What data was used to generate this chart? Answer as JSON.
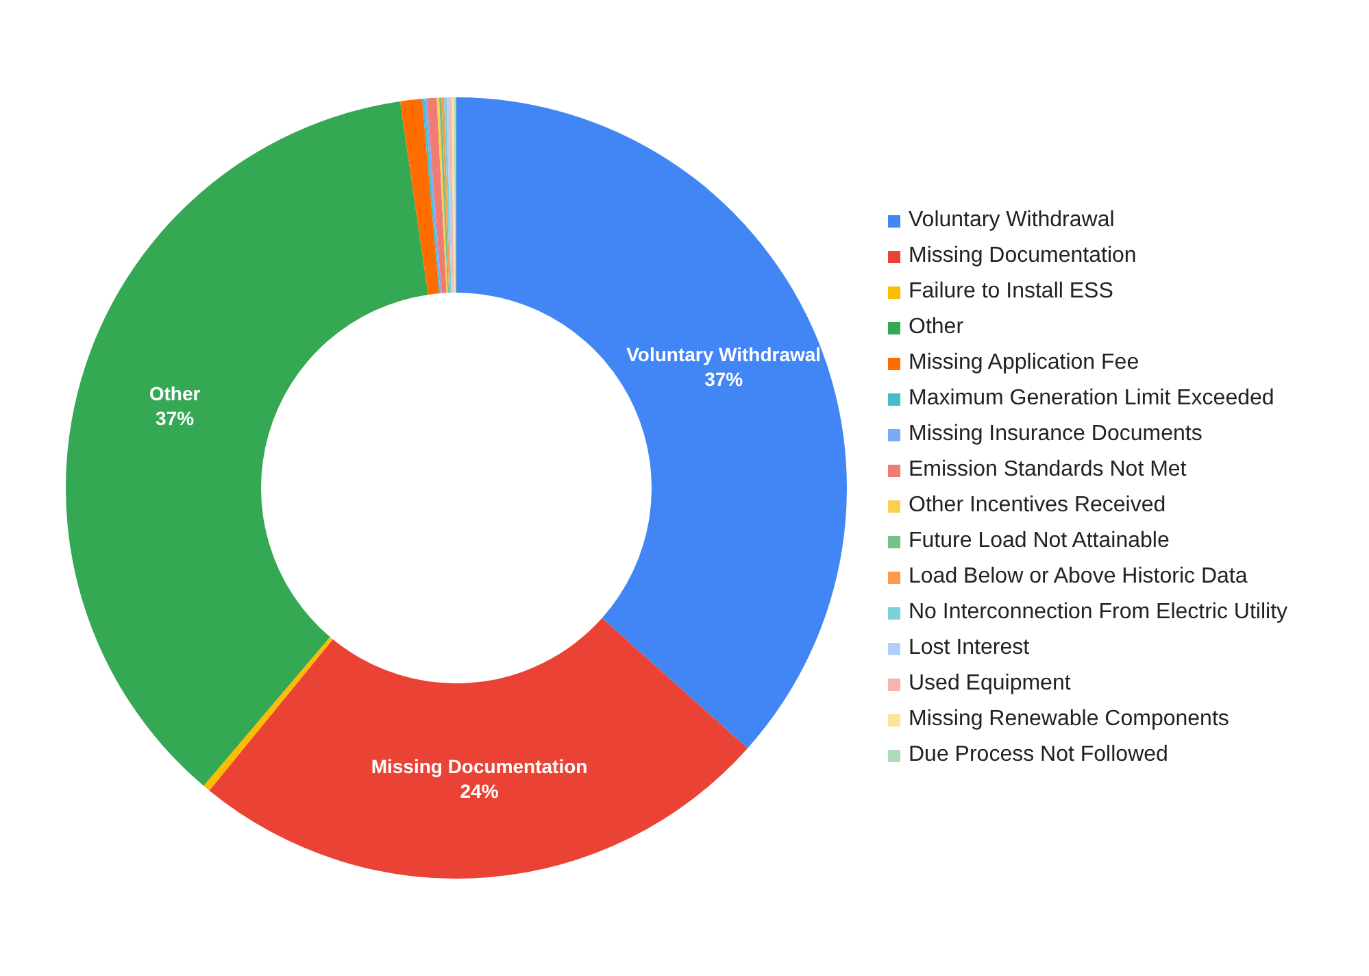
{
  "chart_data": {
    "type": "donut",
    "categories": [
      "Voluntary Withdrawal",
      "Missing Documentation",
      "Failure to Install ESS",
      "Other",
      "Missing Application Fee",
      "Maximum Generation Limit Exceeded",
      "Missing Insurance Documents",
      "Emission Standards Not Met",
      "Other Incentives Received",
      "Future Load Not Attainable",
      "Load Below or Above Historic Data",
      "No Interconnection From Electric Utility",
      "Lost Interest",
      "Used Equipment",
      "Missing Renewable Components",
      "Due Process Not Followed"
    ],
    "values": [
      36.6,
      24.3,
      0.3,
      36.5,
      0.9,
      0.1,
      0.1,
      0.4,
      0.1,
      0.1,
      0.1,
      0.1,
      0.1,
      0.1,
      0.1,
      0.1
    ],
    "colors": [
      "#4285f4",
      "#ea4335",
      "#fbbc04",
      "#34a853",
      "#ff6d01",
      "#46bdc6",
      "#7baaf7",
      "#f07b72",
      "#fcd04f",
      "#71c287",
      "#ff994d",
      "#7ed1d7",
      "#b3cefb",
      "#f7b4ae",
      "#fde49b",
      "#aedcba"
    ],
    "value_labels": [
      "37%",
      "24%",
      null,
      "37%",
      null,
      null,
      null,
      null,
      null,
      null,
      null,
      null,
      null,
      null,
      null,
      null
    ],
    "legend": "right"
  }
}
